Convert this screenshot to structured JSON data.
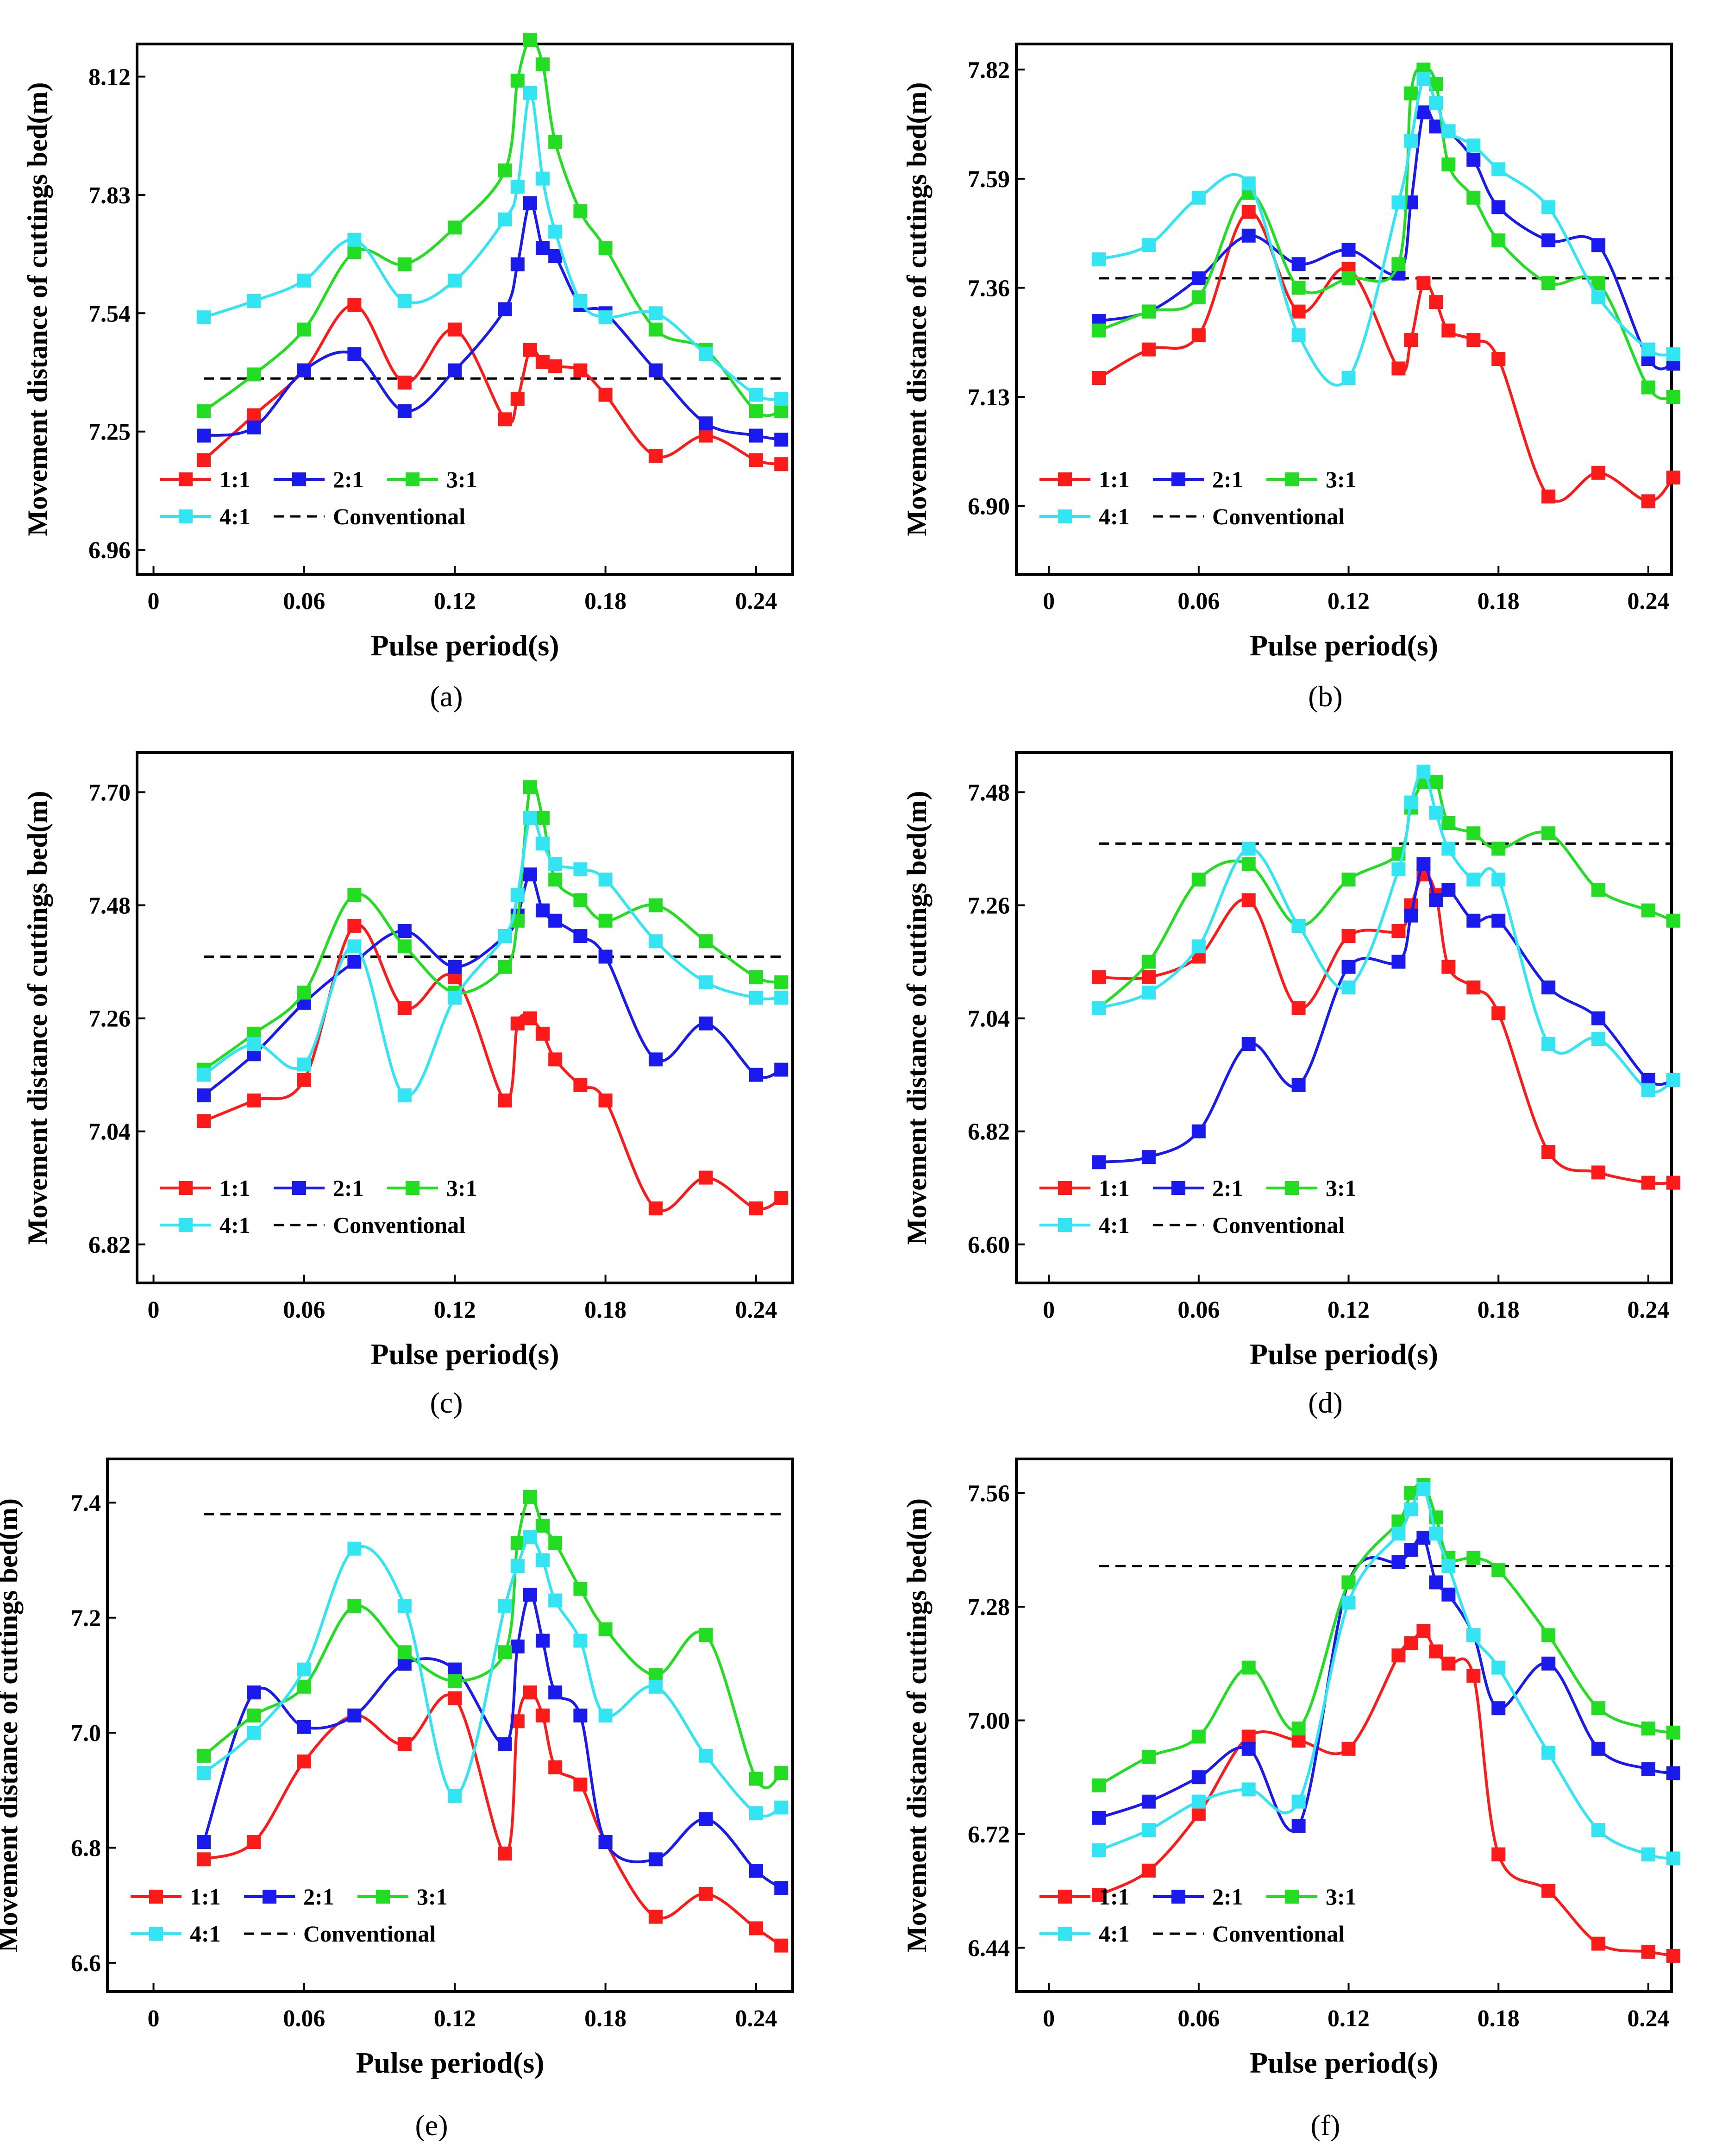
{
  "figure": {
    "ylabel": "Movement distance of cuttings bed(m)",
    "xlabel": "Pulse period(s)",
    "legend": [
      "1:1",
      "2:1",
      "3:1",
      "4:1",
      "Conventional"
    ],
    "colors": {
      "1:1": "#ff1a1a",
      "2:1": "#1a1aee",
      "3:1": "#22dd22",
      "4:1": "#33e5f2",
      "Conventional": "#000000"
    }
  },
  "chart_data": [
    {
      "type": "line",
      "panel": "(a)",
      "xlabel": "Pulse period(s)",
      "ylabel": "Movement distance of cuttings bed(m)",
      "xlim": [
        -0.015,
        0.265
      ],
      "ylim": [
        6.9,
        8.2
      ],
      "xticks": [
        "0",
        "0.06",
        "0.12",
        "0.18",
        "0.24"
      ],
      "yticks": [
        "6.96",
        "7.25",
        "7.54",
        "7.83",
        "8.12"
      ],
      "x": [
        0.02,
        0.04,
        0.06,
        0.08,
        0.1,
        0.12,
        0.14,
        0.145,
        0.15,
        0.155,
        0.16,
        0.17,
        0.18,
        0.2,
        0.22,
        0.24,
        0.25
      ],
      "series": [
        {
          "name": "1:1",
          "values": [
            7.18,
            7.29,
            7.4,
            7.56,
            7.37,
            7.5,
            7.28,
            7.33,
            7.45,
            7.42,
            7.41,
            7.4,
            7.34,
            7.19,
            7.24,
            7.18,
            7.17
          ]
        },
        {
          "name": "2:1",
          "values": [
            7.24,
            7.26,
            7.4,
            7.44,
            7.3,
            7.4,
            7.55,
            7.66,
            7.81,
            7.7,
            7.68,
            7.56,
            7.54,
            7.4,
            7.27,
            7.24,
            7.23
          ]
        },
        {
          "name": "3:1",
          "values": [
            7.3,
            7.39,
            7.5,
            7.69,
            7.66,
            7.75,
            7.89,
            8.11,
            8.21,
            8.15,
            7.96,
            7.79,
            7.7,
            7.5,
            7.45,
            7.3,
            7.3
          ]
        },
        {
          "name": "4:1",
          "values": [
            7.53,
            7.57,
            7.62,
            7.72,
            7.57,
            7.62,
            7.77,
            7.85,
            8.08,
            7.87,
            7.74,
            7.57,
            7.53,
            7.54,
            7.44,
            7.34,
            7.33
          ]
        }
      ],
      "conventional": 7.38
    },
    {
      "type": "line",
      "panel": "(b)",
      "xlabel": "Pulse period(s)",
      "ylabel": "Movement distance of cuttings bed(m)",
      "xlim": [
        -0.015,
        0.265
      ],
      "ylim": [
        6.756,
        7.874
      ],
      "xticks": [
        "0",
        "0.06",
        "0.12",
        "0.18",
        "0.24"
      ],
      "yticks": [
        "6.90",
        "7.13",
        "7.36",
        "7.59",
        "7.82"
      ],
      "x": [
        0.02,
        0.04,
        0.06,
        0.08,
        0.1,
        0.12,
        0.14,
        0.145,
        0.15,
        0.155,
        0.16,
        0.17,
        0.18,
        0.2,
        0.22,
        0.24,
        0.25
      ],
      "series": [
        {
          "name": "1:1",
          "values": [
            7.17,
            7.23,
            7.26,
            7.52,
            7.31,
            7.4,
            7.19,
            7.25,
            7.37,
            7.33,
            7.27,
            7.25,
            7.21,
            6.92,
            6.97,
            6.91,
            6.96
          ]
        },
        {
          "name": "2:1",
          "values": [
            7.29,
            7.31,
            7.38,
            7.47,
            7.41,
            7.44,
            7.39,
            7.54,
            7.73,
            7.7,
            7.69,
            7.63,
            7.53,
            7.46,
            7.45,
            7.21,
            7.2
          ]
        },
        {
          "name": "3:1",
          "values": [
            7.27,
            7.31,
            7.34,
            7.56,
            7.36,
            7.38,
            7.41,
            7.77,
            7.82,
            7.79,
            7.62,
            7.55,
            7.46,
            7.37,
            7.37,
            7.15,
            7.13
          ]
        },
        {
          "name": "4:1",
          "values": [
            7.42,
            7.45,
            7.55,
            7.58,
            7.26,
            7.17,
            7.54,
            7.67,
            7.8,
            7.75,
            7.69,
            7.66,
            7.61,
            7.53,
            7.34,
            7.23,
            7.22
          ]
        }
      ],
      "conventional": 7.38
    },
    {
      "type": "line",
      "panel": "(c)",
      "xlabel": "Pulse period(s)",
      "ylabel": "Movement distance of cuttings bed(m)",
      "xlim": [
        -0.015,
        0.265
      ],
      "ylim": [
        6.745,
        7.777
      ],
      "xticks": [
        "0",
        "0.06",
        "0.12",
        "0.18",
        "0.24"
      ],
      "yticks": [
        "6.82",
        "7.04",
        "7.26",
        "7.48",
        "7.70"
      ],
      "x": [
        0.02,
        0.04,
        0.06,
        0.08,
        0.1,
        0.12,
        0.14,
        0.145,
        0.15,
        0.155,
        0.16,
        0.17,
        0.18,
        0.2,
        0.22,
        0.24,
        0.25
      ],
      "series": [
        {
          "name": "1:1",
          "values": [
            7.06,
            7.1,
            7.14,
            7.44,
            7.28,
            7.34,
            7.1,
            7.25,
            7.26,
            7.23,
            7.18,
            7.13,
            7.1,
            6.89,
            6.95,
            6.89,
            6.91
          ]
        },
        {
          "name": "2:1",
          "values": [
            7.11,
            7.19,
            7.29,
            7.37,
            7.43,
            7.36,
            7.42,
            7.46,
            7.54,
            7.47,
            7.45,
            7.42,
            7.38,
            7.18,
            7.25,
            7.15,
            7.16
          ]
        },
        {
          "name": "3:1",
          "values": [
            7.16,
            7.23,
            7.31,
            7.5,
            7.4,
            7.31,
            7.36,
            7.45,
            7.71,
            7.65,
            7.53,
            7.49,
            7.45,
            7.48,
            7.41,
            7.34,
            7.33
          ]
        },
        {
          "name": "4:1",
          "values": [
            7.15,
            7.21,
            7.17,
            7.4,
            7.11,
            7.3,
            7.42,
            7.5,
            7.65,
            7.6,
            7.56,
            7.55,
            7.53,
            7.41,
            7.33,
            7.3,
            7.3
          ]
        }
      ],
      "conventional": 7.38
    },
    {
      "type": "line",
      "panel": "(d)",
      "xlabel": "Pulse period(s)",
      "ylabel": "Movement distance of cuttings bed(m)",
      "xlim": [
        -0.015,
        0.265
      ],
      "ylim": [
        6.525,
        7.557
      ],
      "xticks": [
        "0",
        "0.06",
        "0.12",
        "0.18",
        "0.24"
      ],
      "yticks": [
        "6.60",
        "6.82",
        "7.04",
        "7.26",
        "7.48"
      ],
      "x": [
        0.02,
        0.04,
        0.06,
        0.08,
        0.1,
        0.12,
        0.14,
        0.145,
        0.15,
        0.155,
        0.16,
        0.17,
        0.18,
        0.2,
        0.22,
        0.24,
        0.25
      ],
      "series": [
        {
          "name": "1:1",
          "values": [
            7.12,
            7.12,
            7.16,
            7.27,
            7.06,
            7.2,
            7.21,
            7.26,
            7.32,
            7.28,
            7.14,
            7.1,
            7.05,
            6.78,
            6.74,
            6.72,
            6.72
          ]
        },
        {
          "name": "2:1",
          "values": [
            6.76,
            6.77,
            6.82,
            6.99,
            6.91,
            7.14,
            7.15,
            7.24,
            7.34,
            7.27,
            7.29,
            7.23,
            7.23,
            7.1,
            7.04,
            6.92,
            6.92
          ]
        },
        {
          "name": "3:1",
          "values": [
            7.06,
            7.15,
            7.31,
            7.34,
            7.22,
            7.31,
            7.36,
            7.45,
            7.5,
            7.5,
            7.42,
            7.4,
            7.37,
            7.4,
            7.29,
            7.25,
            7.23
          ]
        },
        {
          "name": "4:1",
          "values": [
            7.06,
            7.09,
            7.18,
            7.37,
            7.22,
            7.1,
            7.33,
            7.46,
            7.52,
            7.44,
            7.37,
            7.31,
            7.31,
            6.99,
            7.0,
            6.9,
            6.92
          ]
        }
      ],
      "conventional": 7.38
    },
    {
      "type": "line",
      "panel": "(e)",
      "xlabel": "Pulse period(s)",
      "ylabel": "Movement distance of cuttings bed(m)",
      "xlim": [
        -0.01,
        0.265
      ],
      "ylim": [
        6.55,
        7.476
      ],
      "xticks": [
        "0",
        "0.06",
        "0.12",
        "0.18",
        "0.24"
      ],
      "yticks": [
        "6.6",
        "6.8",
        "7.0",
        "7.2",
        "7.4"
      ],
      "x": [
        0.02,
        0.04,
        0.06,
        0.08,
        0.1,
        0.12,
        0.14,
        0.145,
        0.15,
        0.155,
        0.16,
        0.17,
        0.18,
        0.2,
        0.22,
        0.24,
        0.25
      ],
      "series": [
        {
          "name": "1:1",
          "values": [
            6.78,
            6.81,
            6.95,
            7.03,
            6.98,
            7.06,
            6.79,
            7.02,
            7.07,
            7.03,
            6.94,
            6.91,
            6.81,
            6.68,
            6.72,
            6.66,
            6.63
          ]
        },
        {
          "name": "2:1",
          "values": [
            6.81,
            7.07,
            7.01,
            7.03,
            7.12,
            7.11,
            6.98,
            7.15,
            7.24,
            7.16,
            7.07,
            7.03,
            6.81,
            6.78,
            6.85,
            6.76,
            6.73
          ]
        },
        {
          "name": "3:1",
          "values": [
            6.96,
            7.03,
            7.08,
            7.22,
            7.14,
            7.09,
            7.14,
            7.33,
            7.41,
            7.36,
            7.33,
            7.25,
            7.18,
            7.1,
            7.17,
            6.92,
            6.93
          ]
        },
        {
          "name": "4:1",
          "values": [
            6.93,
            7.0,
            7.11,
            7.32,
            7.22,
            6.89,
            7.22,
            7.29,
            7.34,
            7.3,
            7.23,
            7.16,
            7.03,
            7.08,
            6.96,
            6.86,
            6.87
          ]
        }
      ],
      "conventional": 7.38
    },
    {
      "type": "line",
      "panel": "(f)",
      "xlabel": "Pulse period(s)",
      "ylabel": "Movement distance of cuttings bed(m)",
      "xlim": [
        -0.015,
        0.265
      ],
      "ylim": [
        6.332,
        7.644
      ],
      "xticks": [
        "0",
        "0.06",
        "0.12",
        "0.18",
        "0.24"
      ],
      "yticks": [
        "6.44",
        "6.72",
        "7.00",
        "7.28",
        "7.56"
      ],
      "x": [
        0.02,
        0.04,
        0.06,
        0.08,
        0.1,
        0.12,
        0.14,
        0.145,
        0.15,
        0.155,
        0.16,
        0.17,
        0.18,
        0.2,
        0.22,
        0.24,
        0.25
      ],
      "series": [
        {
          "name": "1:1",
          "values": [
            6.57,
            6.63,
            6.77,
            6.96,
            6.95,
            6.93,
            7.16,
            7.19,
            7.22,
            7.17,
            7.14,
            7.11,
            6.67,
            6.58,
            6.45,
            6.43,
            6.42
          ]
        },
        {
          "name": "2:1",
          "values": [
            6.76,
            6.8,
            6.86,
            6.93,
            6.74,
            7.34,
            7.39,
            7.42,
            7.45,
            7.34,
            7.31,
            7.21,
            7.03,
            7.14,
            6.93,
            6.88,
            6.87
          ]
        },
        {
          "name": "3:1",
          "values": [
            6.84,
            6.91,
            6.96,
            7.13,
            6.98,
            7.34,
            7.49,
            7.56,
            7.58,
            7.5,
            7.4,
            7.4,
            7.37,
            7.21,
            7.03,
            6.98,
            6.97
          ]
        },
        {
          "name": "4:1",
          "values": [
            6.68,
            6.73,
            6.8,
            6.83,
            6.8,
            7.29,
            7.46,
            7.52,
            7.57,
            7.46,
            7.38,
            7.21,
            7.13,
            6.92,
            6.73,
            6.67,
            6.66
          ]
        }
      ],
      "conventional": 7.38
    }
  ]
}
